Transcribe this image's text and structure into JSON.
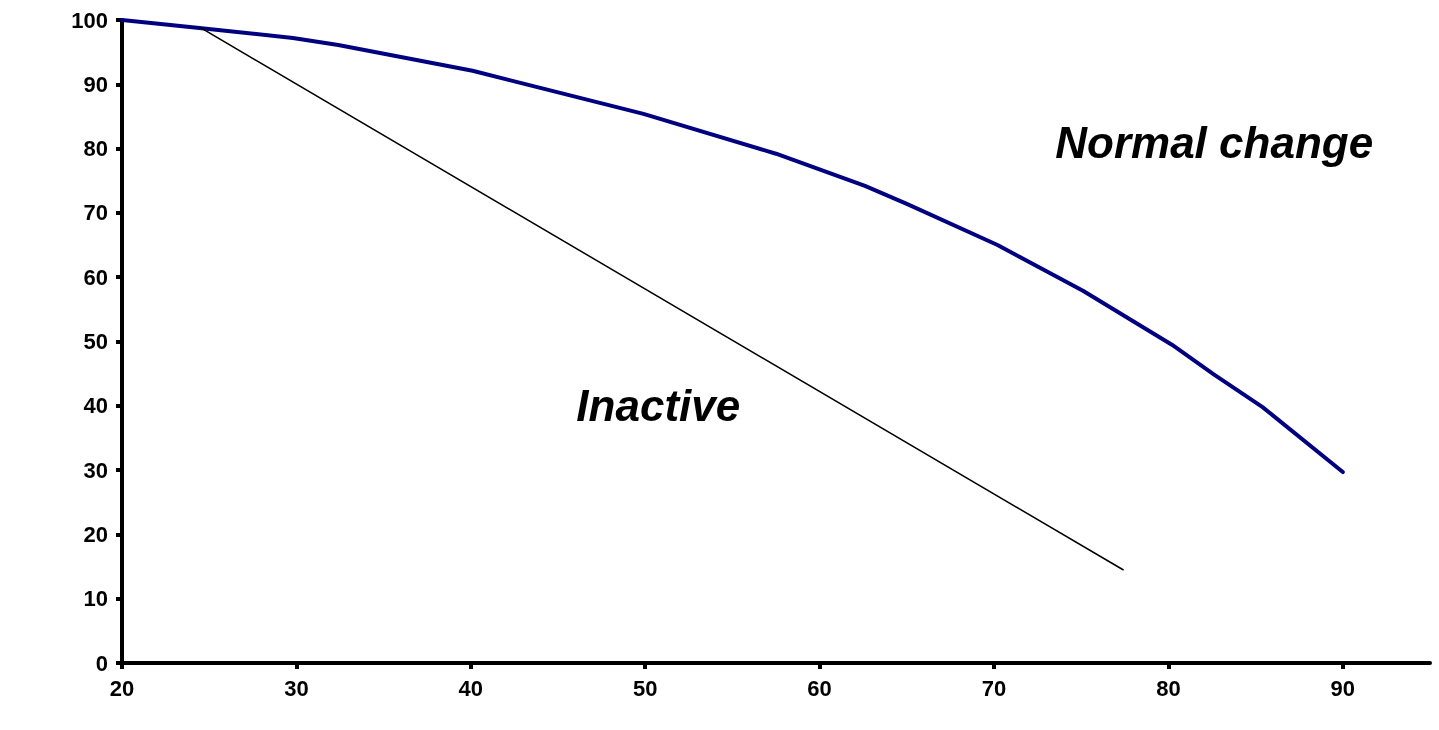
{
  "chart_data": {
    "type": "line",
    "xlim": [
      20,
      95
    ],
    "xticks": [
      20,
      30,
      40,
      50,
      60,
      70,
      80,
      90
    ],
    "ylim": [
      0,
      100
    ],
    "yticks": [
      0,
      10,
      20,
      30,
      40,
      50,
      60,
      70,
      80,
      90,
      100
    ],
    "grid": false,
    "marker": "none",
    "line_style": "solid",
    "series": [
      {
        "name": "Normal change",
        "color": "#000080",
        "x": [
          20,
          24.3,
          29.8,
          32.4,
          40.1,
          49.9,
          57.5,
          62.6,
          65,
          70.2,
          75.1,
          80.2,
          82.6,
          85.4,
          90
        ],
        "values": [
          100,
          98.8,
          97.2,
          96.1,
          92.1,
          85.4,
          79.2,
          74.2,
          71.4,
          65,
          57.9,
          49.5,
          44.9,
          39.8,
          29.7
        ]
      },
      {
        "name": "Inactive",
        "color": "#000000",
        "x": [
          24.5,
          77.4
        ],
        "values": [
          98.8,
          14.5
        ]
      }
    ]
  }
}
